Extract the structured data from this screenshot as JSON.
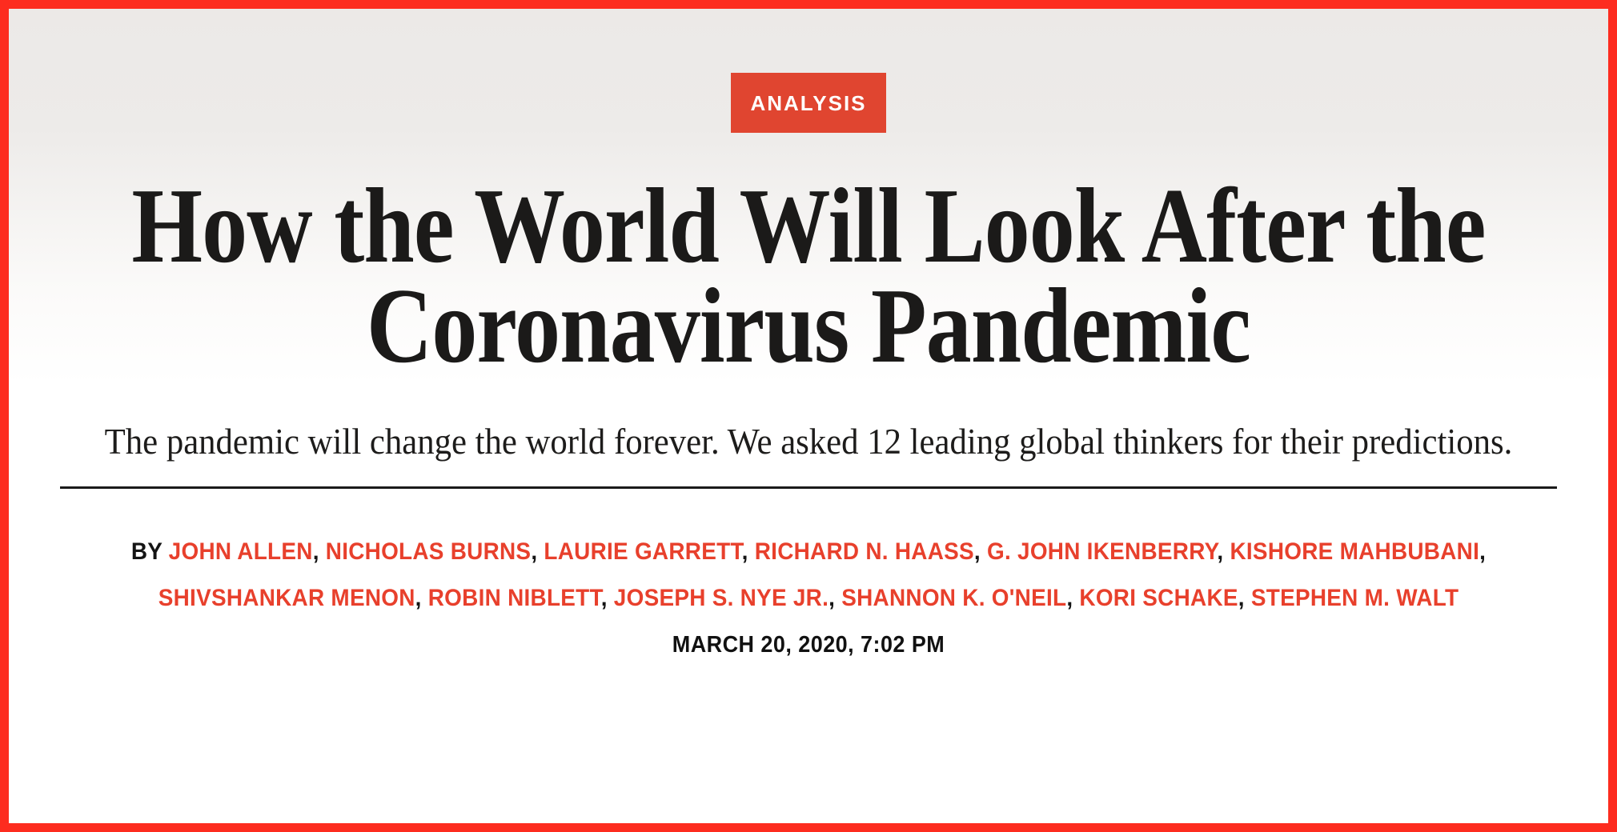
{
  "badge": {
    "label": "ANALYSIS"
  },
  "article": {
    "title_line1": "How the World Will Look After the",
    "title_line2": "Coronavirus Pandemic",
    "dek": "The pandemic will change the world forever. We asked 12 leading global thinkers for their predictions.",
    "byline_prefix": "BY",
    "authors": [
      "JOHN ALLEN",
      "NICHOLAS BURNS",
      "LAURIE GARRETT",
      "RICHARD N. HAASS",
      "G. JOHN IKENBERRY",
      "KISHORE MAHBUBANI",
      "SHIVSHANKAR MENON",
      "ROBIN NIBLETT",
      "JOSEPH S. NYE JR.",
      "SHANNON K. O'NEIL",
      "KORI SCHAKE",
      "STEPHEN M. WALT"
    ],
    "author_separator": ", ",
    "timestamp": "MARCH 20, 2020, 7:02 PM"
  },
  "colors": {
    "frame_border": "#fd2c1f",
    "badge_background": "#e04530",
    "badge_text": "#ffffff",
    "author_link": "#e8402c",
    "headline_text": "#1b1a19",
    "body_text": "#1d1c1b",
    "rule": "#1a1a1a",
    "background_top": "#ece9e7",
    "background_bottom": "#ffffff"
  }
}
